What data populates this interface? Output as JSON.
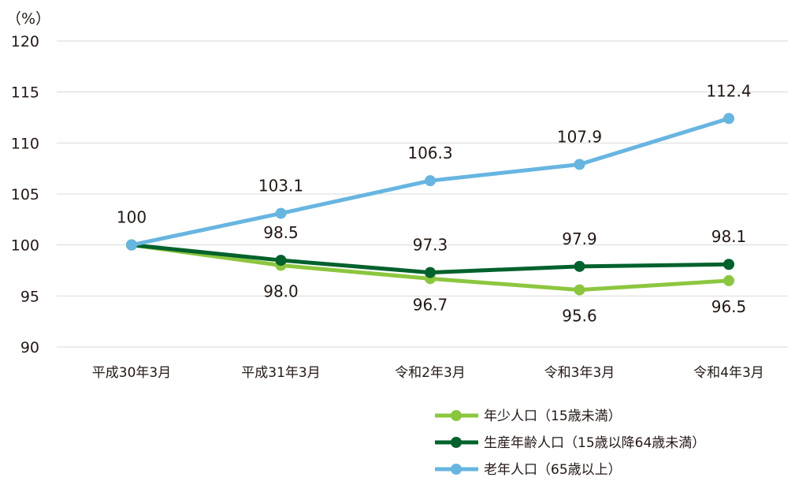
{
  "chart_data": {
    "type": "line",
    "y_unit": "（%）",
    "categories": [
      "平成30年3月",
      "平成31年3月",
      "令和2年3月",
      "令和3年3月",
      "令和4年3月"
    ],
    "ylim": [
      90,
      120
    ],
    "yticks": [
      90,
      95,
      100,
      105,
      110,
      115,
      120
    ],
    "grid": true,
    "legend_position": "bottom-right",
    "series": [
      {
        "name": "年少人口（15歳未満）",
        "color": "#8cc63f",
        "values": [
          100,
          98.0,
          96.7,
          95.6,
          96.5
        ],
        "labels": [
          "",
          "98.0",
          "96.7",
          "95.6",
          "96.5"
        ],
        "label_side": "below"
      },
      {
        "name": "生産年齢人口（15歳以降64歳未満）",
        "color": "#00612c",
        "values": [
          100,
          98.5,
          97.3,
          97.9,
          98.1
        ],
        "labels": [
          "",
          "98.5",
          "97.3",
          "97.9",
          "98.1"
        ],
        "label_side": "above"
      },
      {
        "name": "老年人口（65歳以上）",
        "color": "#67b5e0",
        "values": [
          100,
          103.1,
          106.3,
          107.9,
          112.4
        ],
        "labels": [
          "100",
          "103.1",
          "106.3",
          "107.9",
          "112.4"
        ],
        "label_side": "above"
      }
    ]
  }
}
